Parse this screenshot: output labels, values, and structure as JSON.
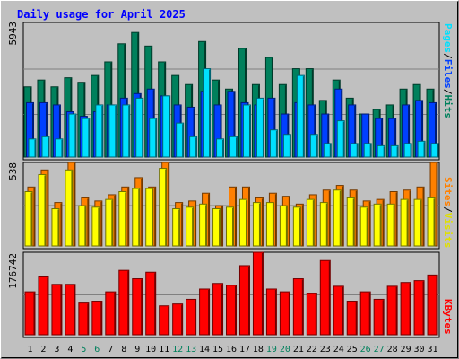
{
  "title": "Daily usage for April 2025",
  "colors": {
    "background": "#c0c0c0",
    "hits": "#00805c",
    "files": "#0040ff",
    "pages": "#00e0ff",
    "visits": "#ffff00",
    "sites": "#ff8000",
    "kbytes": "#ff0000",
    "weekend": "#00805c",
    "weekday": "#000000",
    "title": "#0000ff"
  },
  "right_labels": {
    "pages": "Pages",
    "files": "Files",
    "hits": "Hits",
    "visits": "Visits",
    "sites": "Sites",
    "kbytes": "KBytes",
    "separator": "/"
  },
  "chart_data": [
    {
      "type": "bar",
      "panel": "hits-files-pages",
      "y_max_label": "5943",
      "ylim": [
        0,
        5943
      ],
      "categories": [
        "1",
        "2",
        "3",
        "4",
        "5",
        "6",
        "7",
        "8",
        "9",
        "10",
        "11",
        "12",
        "13",
        "14",
        "15",
        "16",
        "17",
        "18",
        "19",
        "20",
        "21",
        "22",
        "23",
        "24",
        "25",
        "26",
        "27",
        "28",
        "29",
        "30",
        "31"
      ],
      "series": [
        {
          "name": "Hits",
          "values": [
            3100,
            3400,
            3100,
            3500,
            3300,
            3600,
            4200,
            5000,
            5500,
            4900,
            4200,
            3600,
            3200,
            5100,
            3400,
            3000,
            4800,
            3200,
            4400,
            3200,
            3900,
            3900,
            2500,
            3400,
            2600,
            1900,
            2100,
            2300,
            3000,
            3200,
            3000
          ]
        },
        {
          "name": "Files",
          "values": [
            2400,
            2400,
            2300,
            2000,
            1800,
            2000,
            2300,
            2600,
            2800,
            3000,
            2700,
            2300,
            2200,
            2900,
            2300,
            2900,
            2400,
            2300,
            2600,
            1900,
            2400,
            2300,
            1900,
            3000,
            2300,
            1900,
            1700,
            1700,
            2300,
            2500,
            2400
          ]
        },
        {
          "name": "Pages",
          "values": [
            800,
            900,
            800,
            1900,
            1700,
            2300,
            2300,
            2300,
            2600,
            1700,
            2700,
            1500,
            900,
            3900,
            800,
            900,
            2300,
            2600,
            1200,
            1000,
            3600,
            1000,
            600,
            1600,
            600,
            600,
            500,
            500,
            600,
            700,
            600
          ]
        }
      ]
    },
    {
      "type": "bar",
      "panel": "visits-sites",
      "y_max_label": "538",
      "ylim": [
        0,
        538
      ],
      "categories": [
        "1",
        "2",
        "3",
        "4",
        "5",
        "6",
        "7",
        "8",
        "9",
        "10",
        "11",
        "12",
        "13",
        "14",
        "15",
        "16",
        "17",
        "18",
        "19",
        "20",
        "21",
        "22",
        "23",
        "24",
        "25",
        "26",
        "27",
        "28",
        "29",
        "30",
        "31"
      ],
      "series": [
        {
          "name": "Sites",
          "values": [
            380,
            490,
            280,
            538,
            310,
            290,
            330,
            380,
            440,
            380,
            538,
            280,
            290,
            340,
            260,
            380,
            380,
            310,
            340,
            320,
            270,
            330,
            360,
            390,
            360,
            290,
            300,
            350,
            360,
            380,
            538
          ]
        },
        {
          "name": "Visits",
          "values": [
            350,
            460,
            240,
            490,
            260,
            250,
            300,
            350,
            370,
            370,
            500,
            240,
            250,
            270,
            240,
            250,
            300,
            280,
            280,
            260,
            250,
            300,
            280,
            360,
            310,
            250,
            270,
            270,
            300,
            300,
            310
          ]
        }
      ]
    },
    {
      "type": "bar",
      "panel": "kbytes",
      "y_max_label": "176742",
      "ylim": [
        0,
        176742
      ],
      "categories": [
        "1",
        "2",
        "3",
        "4",
        "5",
        "6",
        "7",
        "8",
        "9",
        "10",
        "11",
        "12",
        "13",
        "14",
        "15",
        "16",
        "17",
        "18",
        "19",
        "20",
        "21",
        "22",
        "23",
        "24",
        "25",
        "26",
        "27",
        "28",
        "29",
        "30",
        "31"
      ],
      "series": [
        {
          "name": "KBytes",
          "values": [
            92000,
            124000,
            108000,
            108000,
            68000,
            72000,
            92000,
            138000,
            120000,
            134000,
            62000,
            66000,
            76000,
            98000,
            110000,
            106000,
            148000,
            176742,
            98000,
            92000,
            120000,
            88000,
            159000,
            104000,
            72000,
            92000,
            76000,
            104000,
            112000,
            116000,
            128000
          ]
        }
      ]
    }
  ]
}
